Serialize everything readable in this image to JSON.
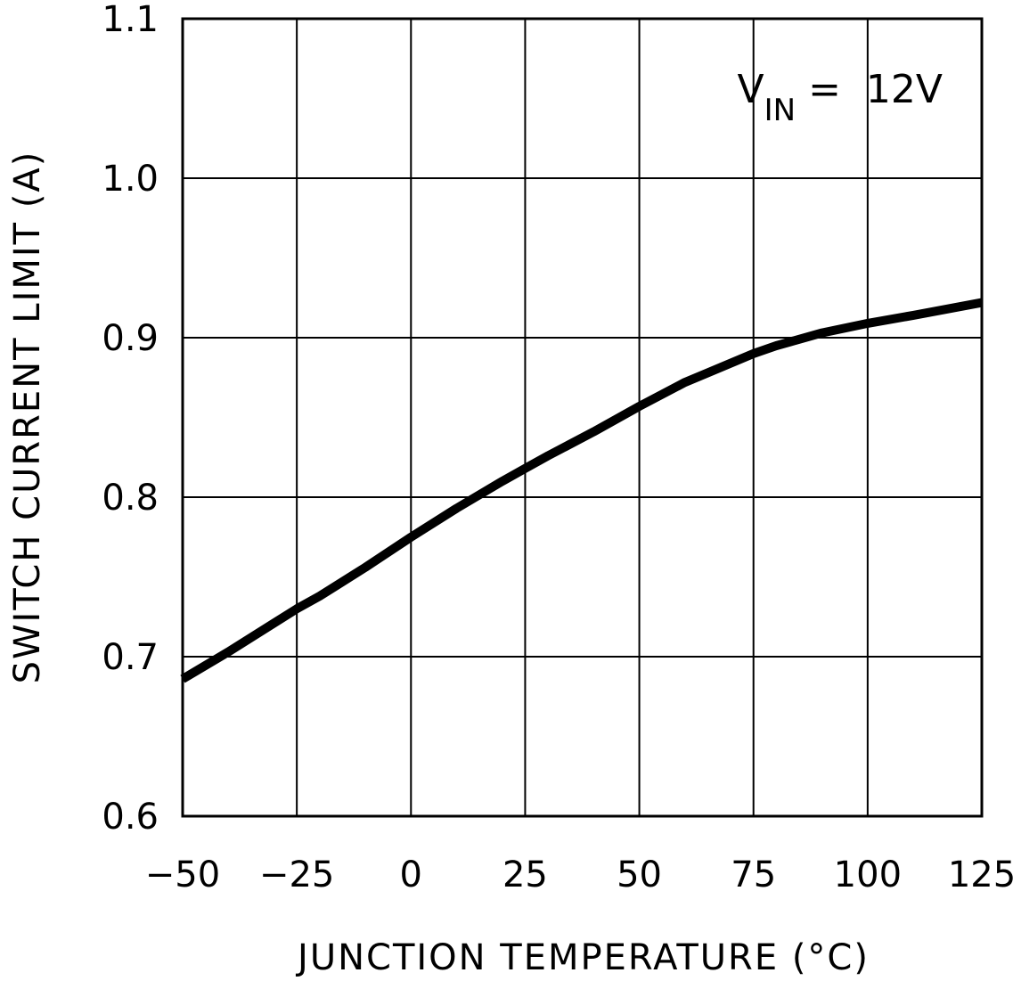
{
  "chart_data": {
    "type": "line",
    "xlabel": "JUNCTION TEMPERATURE (°C)",
    "ylabel": "SWITCH CURRENT LIMIT (A)",
    "xlim": [
      -50,
      125
    ],
    "ylim": [
      0.6,
      1.1
    ],
    "x_ticks": [
      -50,
      -25,
      0,
      25,
      50,
      75,
      100,
      125
    ],
    "y_ticks": [
      0.6,
      0.7,
      0.8,
      0.9,
      1.0,
      1.1
    ],
    "x_tick_labels": [
      "−50",
      "−25",
      "0",
      "25",
      "50",
      "75",
      "100",
      "125"
    ],
    "y_tick_labels": [
      "0.6",
      "0.7",
      "0.8",
      "0.9",
      "1.0",
      "1.1"
    ],
    "grid": true,
    "annotation": {
      "prefix": "V",
      "subscript": "IN",
      "suffix": " =  12V",
      "placement": "top-right"
    },
    "series": [
      {
        "color": "#000000",
        "x": [
          -50,
          -40,
          -30,
          -25,
          -20,
          -10,
          0,
          10,
          20,
          25,
          30,
          40,
          50,
          60,
          65,
          70,
          75,
          80,
          90,
          100,
          110,
          125
        ],
        "y": [
          0.686,
          0.703,
          0.721,
          0.73,
          0.738,
          0.756,
          0.775,
          0.793,
          0.81,
          0.818,
          0.826,
          0.841,
          0.857,
          0.872,
          0.878,
          0.884,
          0.89,
          0.895,
          0.903,
          0.909,
          0.914,
          0.922
        ]
      }
    ]
  }
}
